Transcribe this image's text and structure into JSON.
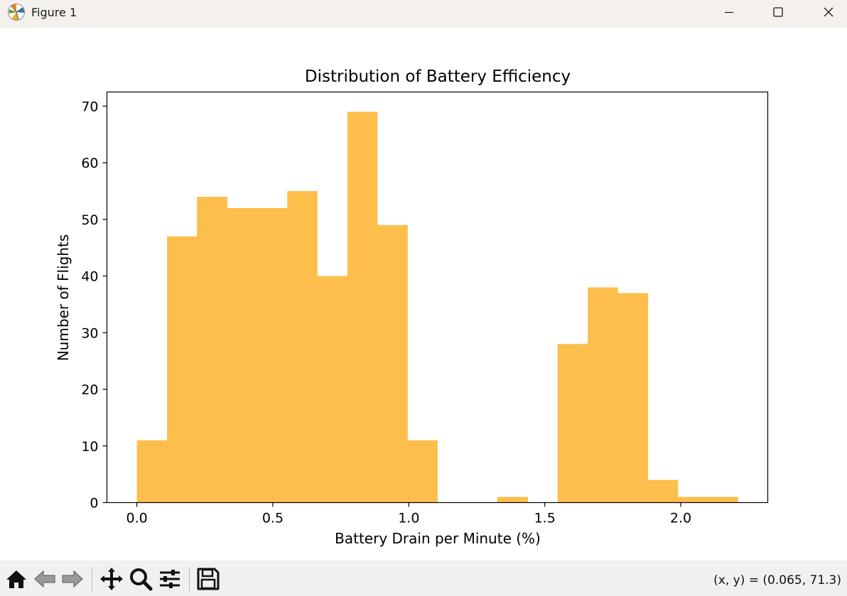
{
  "window": {
    "title": "Figure 1",
    "minimize_icon": "minimize-icon",
    "maximize_icon": "maximize-icon",
    "close_icon": "close-icon"
  },
  "toolbar": {
    "buttons": [
      {
        "name": "home",
        "icon": "home-icon"
      },
      {
        "name": "back",
        "icon": "back-arrow-icon"
      },
      {
        "name": "forward",
        "icon": "forward-arrow-icon"
      },
      {
        "name": "pan",
        "icon": "pan-move-icon"
      },
      {
        "name": "zoom",
        "icon": "zoom-magnifier-icon"
      },
      {
        "name": "configure-subplots",
        "icon": "sliders-icon"
      },
      {
        "name": "save",
        "icon": "save-floppy-icon"
      }
    ],
    "coordinates": "(x, y) = (0.065, 71.3)"
  },
  "colors": {
    "bar_fill": "#fdbe4c",
    "titlebar_bg": "#f4f1ed",
    "toolbar_bg": "#f0f0f0"
  },
  "chart_data": {
    "type": "bar",
    "title": "Distribution of Battery Efficiency",
    "xlabel": "Battery Drain per Minute (%)",
    "ylabel": "Number of Flights",
    "xlim": [
      -0.11,
      2.32
    ],
    "ylim": [
      0,
      72.5
    ],
    "xticks": [
      0.0,
      0.5,
      1.0,
      1.5,
      2.0
    ],
    "xtick_labels": [
      "0.0",
      "0.5",
      "1.0",
      "1.5",
      "2.0"
    ],
    "yticks": [
      0,
      10,
      20,
      30,
      40,
      50,
      60,
      70
    ],
    "ytick_labels": [
      "0",
      "10",
      "20",
      "30",
      "40",
      "50",
      "60",
      "70"
    ],
    "grid": false,
    "bins": [
      {
        "x0": 0.0,
        "x1": 0.111,
        "count": 11
      },
      {
        "x0": 0.111,
        "x1": 0.221,
        "count": 47
      },
      {
        "x0": 0.221,
        "x1": 0.332,
        "count": 54
      },
      {
        "x0": 0.332,
        "x1": 0.442,
        "count": 52
      },
      {
        "x0": 0.442,
        "x1": 0.553,
        "count": 52
      },
      {
        "x0": 0.553,
        "x1": 0.663,
        "count": 55
      },
      {
        "x0": 0.663,
        "x1": 0.774,
        "count": 40
      },
      {
        "x0": 0.774,
        "x1": 0.884,
        "count": 69
      },
      {
        "x0": 0.884,
        "x1": 0.995,
        "count": 49
      },
      {
        "x0": 0.995,
        "x1": 1.105,
        "count": 11
      },
      {
        "x0": 1.105,
        "x1": 1.216,
        "count": 0
      },
      {
        "x0": 1.216,
        "x1": 1.326,
        "count": 0
      },
      {
        "x0": 1.326,
        "x1": 1.437,
        "count": 1
      },
      {
        "x0": 1.437,
        "x1": 1.547,
        "count": 0
      },
      {
        "x0": 1.547,
        "x1": 1.658,
        "count": 28
      },
      {
        "x0": 1.658,
        "x1": 1.768,
        "count": 38
      },
      {
        "x0": 1.768,
        "x1": 1.879,
        "count": 37
      },
      {
        "x0": 1.879,
        "x1": 1.989,
        "count": 4
      },
      {
        "x0": 1.989,
        "x1": 2.1,
        "count": 1
      },
      {
        "x0": 2.1,
        "x1": 2.21,
        "count": 1
      }
    ]
  }
}
